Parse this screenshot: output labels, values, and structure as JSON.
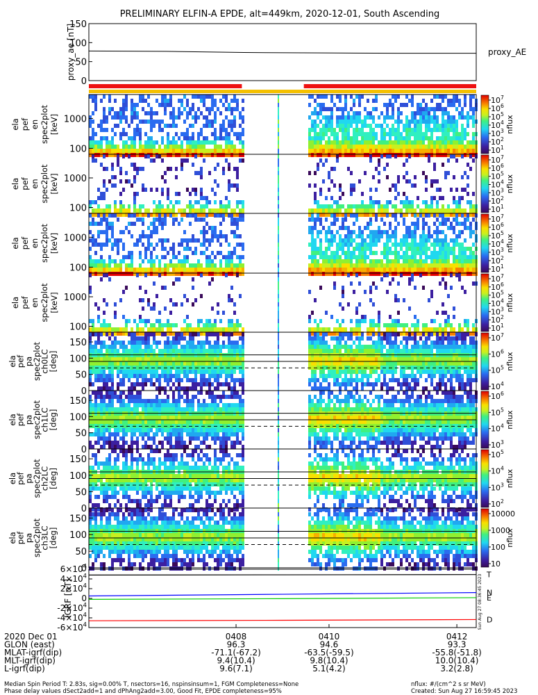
{
  "chart_data": {
    "type": "heatmap",
    "title": "PRELIMINARY ELFIN-A EPDE, alt=449km, 2020-12-01, South Ascending",
    "proxy_ae": {
      "ylabel": "proxy_ae [nT]",
      "yticks": [
        "150",
        "100",
        "50",
        "0"
      ],
      "ylim": [
        0,
        150
      ],
      "legend": "proxy_AE",
      "x": [
        0,
        0.2,
        0.4,
        0.6,
        0.8,
        1.0
      ],
      "values": [
        78,
        77,
        74,
        73,
        72,
        72
      ]
    },
    "status_bars": {
      "red_segments": [
        [
          0.0,
          0.395
        ],
        [
          0.555,
          1.0
        ]
      ],
      "yellow_segment": [
        0.0,
        1.0
      ]
    },
    "panels": [
      {
        "name": "energy-0",
        "ylabel": [
          "ela",
          "pef",
          "en",
          "spec2plot",
          "[keV]"
        ],
        "yticks": [
          "1000",
          "100"
        ],
        "cbar_label": "nflux",
        "cbar_ticks": [
          "10^7",
          "10^6",
          "10^5",
          "10^4",
          "10^3",
          "10^2",
          "10^1"
        ]
      },
      {
        "name": "energy-1",
        "ylabel": [
          "ela",
          "pef",
          "en",
          "spec2plot",
          "[keV]"
        ],
        "yticks": [
          "1000",
          "100"
        ],
        "cbar_label": "nflux",
        "cbar_ticks": [
          "10^7",
          "10^6",
          "10^5",
          "10^4",
          "10^3",
          "10^2",
          "10^1"
        ]
      },
      {
        "name": "energy-2",
        "ylabel": [
          "ela",
          "pef",
          "en",
          "spec2plot",
          "[keV]"
        ],
        "yticks": [
          "1000",
          "100"
        ],
        "cbar_label": "nflux",
        "cbar_ticks": [
          "10^7",
          "10^6",
          "10^5",
          "10^4",
          "10^3",
          "10^2",
          "10^1"
        ]
      },
      {
        "name": "energy-3",
        "ylabel": [
          "ela",
          "pef",
          "en",
          "spec2plot",
          "[keV]"
        ],
        "yticks": [
          "1000",
          "100"
        ],
        "cbar_label": "nflux",
        "cbar_ticks": [
          "10^7",
          "10^6",
          "10^5",
          "10^4",
          "10^3",
          "10^2",
          "10^1"
        ]
      },
      {
        "name": "pitch-ch0",
        "ylabel": [
          "ela",
          "pef",
          "pa",
          "spec2plot",
          "ch0LC",
          "[deg]"
        ],
        "yticks": [
          "150",
          "100",
          "50",
          "0"
        ],
        "cbar_label": "nflux",
        "cbar_ticks": [
          "10^7",
          "10^6",
          "10^5",
          "10^4"
        ]
      },
      {
        "name": "pitch-ch1",
        "ylabel": [
          "ela",
          "pef",
          "pa",
          "spec2plot",
          "ch1LC",
          "[deg]"
        ],
        "yticks": [
          "150",
          "100",
          "50",
          "0"
        ],
        "cbar_label": "nflux",
        "cbar_ticks": [
          "10^6",
          "10^5",
          "10^4",
          "10^3"
        ]
      },
      {
        "name": "pitch-ch2",
        "ylabel": [
          "ela",
          "pef",
          "pa",
          "spec2plot",
          "ch2LC",
          "[deg]"
        ],
        "yticks": [
          "150",
          "100",
          "50",
          "0"
        ],
        "cbar_label": "nflux",
        "cbar_ticks": [
          "10^5",
          "10^4",
          "10^3",
          "10^2"
        ]
      },
      {
        "name": "pitch-ch3",
        "ylabel": [
          "ela",
          "pef",
          "pa",
          "spec2plot",
          "ch3LC",
          "[deg]"
        ],
        "yticks": [
          "150",
          "100",
          "50",
          "0"
        ],
        "cbar_label": "nflux",
        "cbar_ticks": [
          "10000",
          "1000",
          "100",
          "10"
        ]
      }
    ],
    "igrf": {
      "ylabel": "IGRF [nT]",
      "yticks": [
        "6×10^4",
        "4×10^4",
        "2×10^4",
        "0",
        "-2×10^4",
        "-4×10^4",
        "-6×10^4"
      ],
      "ylim": [
        -60000,
        60000
      ],
      "x": [
        0,
        0.5,
        1.0
      ],
      "series": [
        {
          "name": "T",
          "color": "#000000",
          "values": [
            48000,
            48500,
            49000
          ]
        },
        {
          "name": "N",
          "color": "#0000ff",
          "values": [
            5000,
            8500,
            12000
          ]
        },
        {
          "name": "E",
          "color": "#00cc00",
          "values": [
            -2000,
            -500,
            1500
          ]
        },
        {
          "name": "D",
          "color": "#ff0000",
          "values": [
            -46000,
            -45000,
            -43500
          ]
        }
      ],
      "side_note": "Sun Aug 27 08:36:45 2023"
    },
    "xaxis": {
      "ticks": [
        {
          "label": "0408",
          "frac": 0.38
        },
        {
          "label": "0410",
          "frac": 0.62
        },
        {
          "label": "0412",
          "frac": 0.95
        }
      ],
      "rows": [
        {
          "label": "2020 Dec 01",
          "values": [
            "0408",
            "0410",
            "0412"
          ]
        },
        {
          "label": "GLON (east)",
          "values": [
            "96.3",
            "94.6",
            "93.3"
          ]
        },
        {
          "label": "MLAT-igrf(dip)",
          "values": [
            "-71.1(-67.2)",
            "-63.5(-59.5)",
            "-55.8(-51.8)"
          ]
        },
        {
          "label": "MLT-igrf(dip)",
          "values": [
            "9.4(10.4)",
            "9.8(10.4)",
            "10.0(10.4)"
          ]
        },
        {
          "label": "L-igrf(dip)",
          "values": [
            "9.6(7.1)",
            "5.1(4.2)",
            "3.2(2.8)"
          ]
        }
      ]
    }
  },
  "footer": {
    "line1": "Median Spin Period T: 2.83s, sig=0.00% T, nsectors=16, nspinsinsum=1, FGM Completeness=None",
    "line2": "Phase delay values dSect2add=1 and dPhAng2add=3.00, Good Fit, EPDE completeness=95%",
    "units": "nflux: #/(cm^2 s sr MeV)",
    "created": "Created: Sun Aug 27 16:59:45 2023"
  }
}
